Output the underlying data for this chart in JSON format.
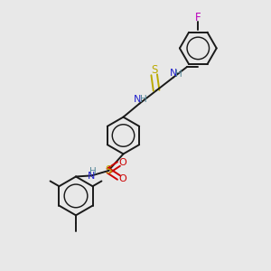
{
  "bg_color": "#e8e8e8",
  "line_color": "#1a1a1a",
  "bond_lw": 1.4,
  "ring_r": 0.068,
  "aromatic_inner_r": 0.6,
  "colors": {
    "C": "#1a1a1a",
    "N": "#2222cc",
    "H": "#558899",
    "S": "#bbaa00",
    "O": "#cc0000",
    "F": "#bb00bb"
  }
}
